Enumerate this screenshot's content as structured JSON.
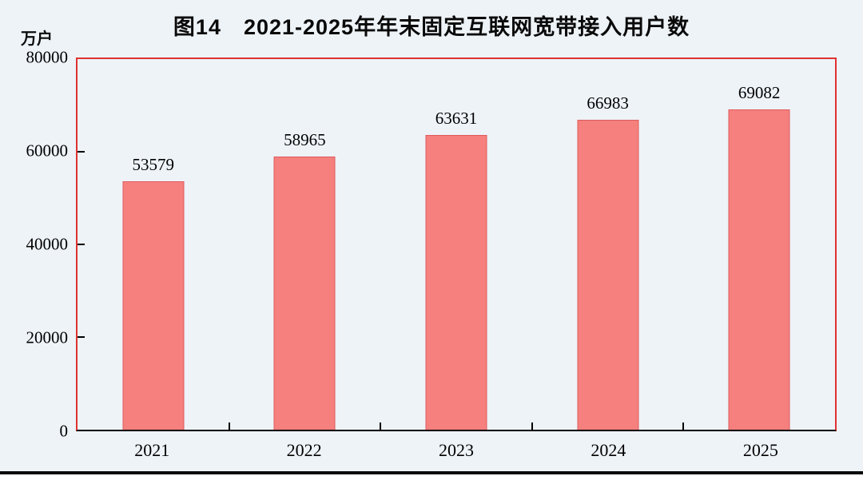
{
  "chart_data": {
    "type": "bar",
    "title": "图14　2021-2025年年末固定互联网宽带接入用户数",
    "unit": "万户",
    "categories": [
      "2021",
      "2022",
      "2023",
      "2024",
      "2025"
    ],
    "values": [
      53579,
      58965,
      63631,
      66983,
      69082
    ],
    "ylabel": "万户",
    "xlabel": "",
    "ylim": [
      0,
      80000
    ],
    "yticks": [
      0,
      20000,
      40000,
      60000,
      80000
    ],
    "grid": false,
    "legend": "none",
    "style": {
      "bar_fill": "#F5807E",
      "bar_edge": "#DE5B5B",
      "plot_border": "#E03131",
      "axis_color": "#000000",
      "background": "#EEF3F8",
      "bottom_rule": "#0A0A0A",
      "text_color": "#000000"
    }
  }
}
